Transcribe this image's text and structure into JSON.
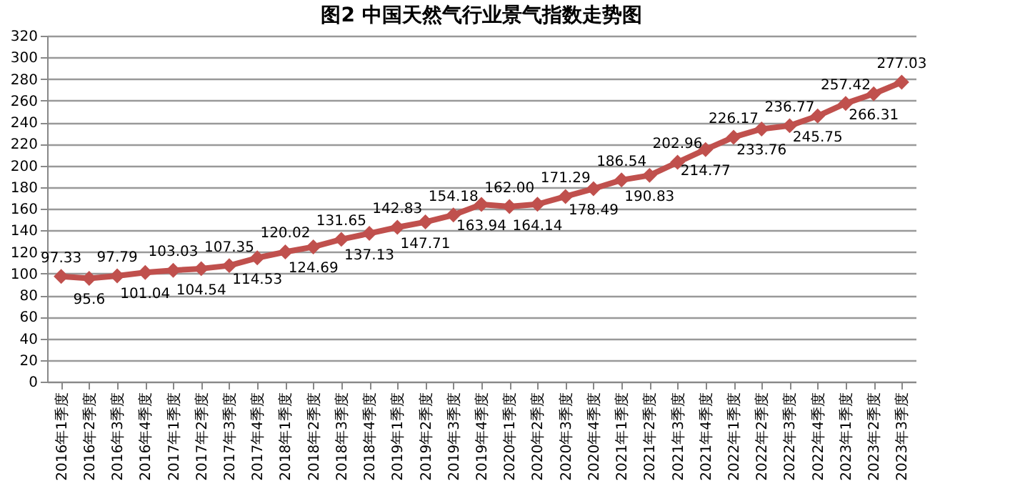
{
  "chart_data": {
    "type": "line",
    "title": "图2  中国天然气行业景气指数走势图",
    "categories": [
      "2016年1季度",
      "2016年2季度",
      "2016年3季度",
      "2016年4季度",
      "2017年1季度",
      "2017年2季度",
      "2017年3季度",
      "2017年4季度",
      "2018年1季度",
      "2018年2季度",
      "2018年3季度",
      "2018年4季度",
      "2019年1季度",
      "2019年2季度",
      "2019年3季度",
      "2019年4季度",
      "2020年1季度",
      "2020年2季度",
      "2020年3季度",
      "2020年4季度",
      "2021年1季度",
      "2021年2季度",
      "2021年3季度",
      "2021年4季度",
      "2022年1季度",
      "2022年2季度",
      "2022年3季度",
      "2022年4季度",
      "2023年1季度",
      "2023年2季度",
      "2023年3季度"
    ],
    "series": [
      {
        "color": "#c0504d",
        "values": [
          97.33,
          95.6,
          97.79,
          101.04,
          103.03,
          104.54,
          107.35,
          114.53,
          120.02,
          124.69,
          131.65,
          137.13,
          142.83,
          147.71,
          154.18,
          163.94,
          162.0,
          164.14,
          171.29,
          178.49,
          186.54,
          190.83,
          202.96,
          214.77,
          226.17,
          233.76,
          236.77,
          245.75,
          257.42,
          266.31,
          277.03
        ],
        "value_labels": [
          "97.33",
          "95.6",
          "97.79",
          "101.04",
          "103.03",
          "104.54",
          "107.35",
          "114.53",
          "120.02",
          "124.69",
          "131.65",
          "137.13",
          "142.83",
          "147.71",
          "154.18",
          "163.94",
          "162.00",
          "164.14",
          "171.29",
          "178.49",
          "186.54",
          "190.83",
          "202.96",
          "214.77",
          "226.17",
          "233.76",
          "236.77",
          "245.75",
          "257.42",
          "266.31",
          "277.03"
        ]
      }
    ],
    "ylim": [
      0,
      320
    ],
    "yticks": [
      0,
      20,
      40,
      60,
      80,
      100,
      120,
      140,
      160,
      180,
      200,
      220,
      240,
      260,
      280,
      300,
      320
    ],
    "grid": "y",
    "marker": "diamond",
    "line_style": "solid",
    "legend": false
  }
}
